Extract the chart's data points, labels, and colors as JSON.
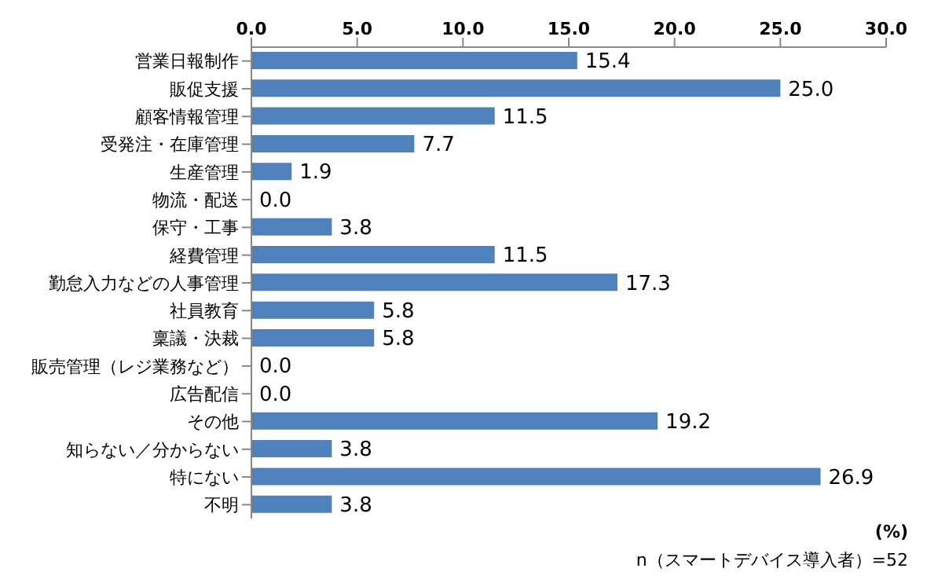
{
  "chart_data": {
    "type": "bar",
    "orientation": "horizontal",
    "categories": [
      "営業日報制作",
      "販促支援",
      "顧客情報管理",
      "受発注・在庫管理",
      "生産管理",
      "物流・配送",
      "保守・工事",
      "経費管理",
      "勤怠入力などの人事管理",
      "社員教育",
      "稟議・決裁",
      "販売管理（レジ業務など）",
      "広告配信",
      "その他",
      "知らない／分からない",
      "特にない",
      "不明"
    ],
    "values": [
      15.4,
      25.0,
      11.5,
      7.7,
      1.9,
      0.0,
      3.8,
      11.5,
      17.3,
      5.8,
      5.8,
      0.0,
      0.0,
      19.2,
      3.8,
      26.9,
      3.8
    ],
    "value_labels": [
      "15.4",
      "25.0",
      "11.5",
      "7.7",
      "1.9",
      "0.0",
      "3.8",
      "11.5",
      "17.3",
      "5.8",
      "5.8",
      "0.0",
      "0.0",
      "19.2",
      "3.8",
      "26.9",
      "3.8"
    ],
    "color": "#4f81bd",
    "xlim": [
      0,
      30
    ],
    "xticks": [
      {
        "value": 0,
        "label": "0.0"
      },
      {
        "value": 5,
        "label": "5.0"
      },
      {
        "value": 10,
        "label": "10.0"
      },
      {
        "value": 15,
        "label": "15.0"
      },
      {
        "value": 20,
        "label": "20.0"
      },
      {
        "value": 25,
        "label": "25.0"
      },
      {
        "value": 30,
        "label": "30.0"
      }
    ],
    "xlabel": "(%)",
    "annotations": [
      "n（スマートデバイス導入者）=52"
    ],
    "grid": false,
    "legend": false
  }
}
